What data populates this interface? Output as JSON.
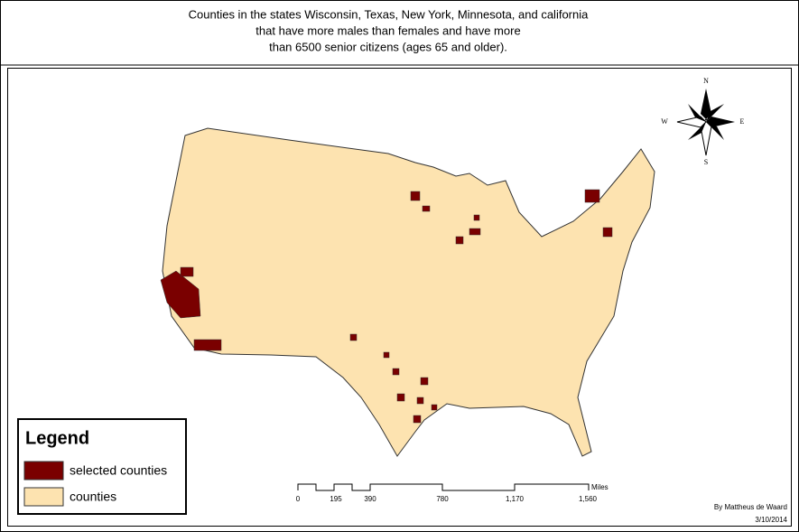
{
  "title_lines": [
    "Counties in the states Wisconsin, Texas, New York, Minnesota, and california",
    "that have more males than females and have more",
    "than 6500 senior citizens (ages 65 and older)."
  ],
  "compass": {
    "north": "N",
    "south": "S",
    "east": "E",
    "west": "W"
  },
  "legend": {
    "title": "Legend",
    "items": [
      "selected counties",
      "counties"
    ]
  },
  "scale_bar": {
    "labels": [
      "0",
      "195",
      "390",
      "780",
      "1,170",
      "1,560"
    ],
    "unit": "Miles"
  },
  "author": "By Mattheus de Waard",
  "date": "3/10/2014"
}
